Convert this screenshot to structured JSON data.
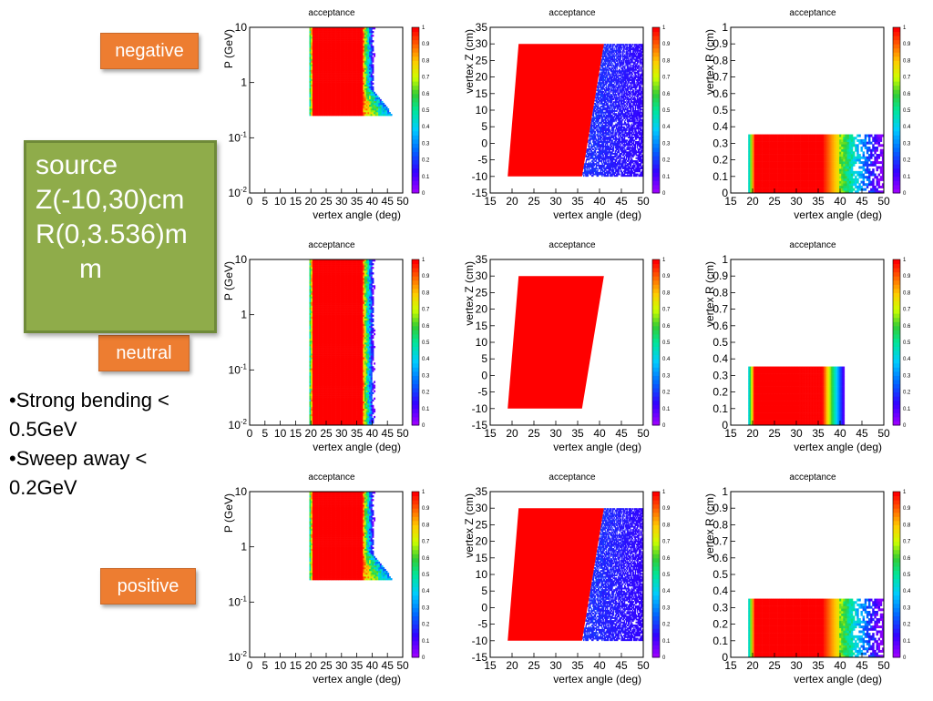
{
  "labels": {
    "negative": "negative",
    "neutral": "neutral",
    "positive": "positive"
  },
  "source_box": {
    "line1": "source",
    "line2": "Z(-10,30)cm",
    "line3": "R(0,3.536)m",
    "line4": "m"
  },
  "notes": {
    "line1": "•Strong bending <",
    "line2": "0.5GeV",
    "line3": "•Sweep away  <",
    "line4": "0.2GeV"
  },
  "colors": {
    "orange": "#ed7d31",
    "green": "#8fac4a",
    "red": "#ff0000",
    "blue": "#3300ff"
  },
  "chart_data": [
    {
      "id": "neg-p",
      "row": "negative",
      "type": "heatmap",
      "title": "acceptance",
      "xlabel": "vertex angle (deg)",
      "ylabel": "P (GeV)",
      "xlim": [
        0,
        50
      ],
      "ylim": [
        0.01,
        10
      ],
      "yscale": "log",
      "x_ticks": [
        "0",
        "5",
        "10",
        "15",
        "20",
        "25",
        "30",
        "35",
        "40",
        "45",
        "50"
      ],
      "y_ticks": [
        "10^-2",
        "10^-1",
        "1",
        "10"
      ],
      "colorbar": [
        0,
        1
      ],
      "colorbar_ticks": [
        "0",
        "0.1",
        "0.2",
        "0.3",
        "0.4",
        "0.5",
        "0.6",
        "0.7",
        "0.8",
        "0.9",
        "1"
      ],
      "region": {
        "theta_min": 19.5,
        "theta_max": 37,
        "p_min_low": 0.25,
        "p_min_at_theta": [
          [
            19.5,
            0.28
          ],
          [
            37,
            0.26
          ],
          [
            50,
            0.3
          ]
        ]
      }
    },
    {
      "id": "neg-z",
      "row": "negative",
      "type": "heatmap",
      "title": "acceptance",
      "xlabel": "vertex angle (deg)",
      "ylabel": "vertex Z (cm)",
      "xlim": [
        15,
        50
      ],
      "ylim": [
        -15,
        35
      ],
      "x_ticks": [
        "15",
        "20",
        "25",
        "30",
        "35",
        "40",
        "45",
        "50"
      ],
      "y_ticks": [
        "-15",
        "-10",
        "-5",
        "0",
        "5",
        "10",
        "15",
        "20",
        "25",
        "30",
        "35"
      ],
      "colorbar": [
        0,
        1
      ],
      "colorbar_ticks": [
        "0",
        "0.1",
        "0.2",
        "0.3",
        "0.4",
        "0.5",
        "0.6",
        "0.7",
        "0.8",
        "0.9",
        "1"
      ],
      "region": {
        "z_min": -10,
        "z_max": 30,
        "theta_low_at_zmin": 19,
        "theta_low_at_zmax": 21.5,
        "theta_high_at_zmin": 36,
        "theta_high_at_zmax": 41
      },
      "low_region_to_theta": 50
    },
    {
      "id": "neg-r",
      "row": "negative",
      "type": "heatmap",
      "title": "acceptance",
      "xlabel": "vertex angle (deg)",
      "ylabel": "vertex R (cm)",
      "xlim": [
        15,
        50
      ],
      "ylim": [
        0,
        1
      ],
      "x_ticks": [
        "15",
        "20",
        "25",
        "30",
        "35",
        "40",
        "45",
        "50"
      ],
      "y_ticks": [
        "0",
        "0.1",
        "0.2",
        "0.3",
        "0.4",
        "0.5",
        "0.6",
        "0.7",
        "0.8",
        "0.9",
        "1"
      ],
      "colorbar": [
        0,
        1
      ],
      "colorbar_ticks": [
        "0",
        "0.1",
        "0.2",
        "0.3",
        "0.4",
        "0.5",
        "0.6",
        "0.7",
        "0.8",
        "0.9",
        "1"
      ],
      "region": {
        "r_max": 0.354,
        "theta_min": 19,
        "theta_max": 36,
        "fade_to": 50
      }
    },
    {
      "id": "neu-p",
      "row": "neutral",
      "type": "heatmap",
      "title": "acceptance",
      "xlabel": "vertex angle (deg)",
      "ylabel": "P (GeV)",
      "xlim": [
        0,
        50
      ],
      "ylim": [
        0.01,
        10
      ],
      "yscale": "log",
      "x_ticks": [
        "0",
        "5",
        "10",
        "15",
        "20",
        "25",
        "30",
        "35",
        "40",
        "45",
        "50"
      ],
      "y_ticks": [
        "10^-2",
        "10^-1",
        "1",
        "10"
      ],
      "colorbar": [
        0,
        1
      ],
      "colorbar_ticks": [
        "0",
        "0.1",
        "0.2",
        "0.3",
        "0.4",
        "0.5",
        "0.6",
        "0.7",
        "0.8",
        "0.9",
        "1"
      ],
      "region": {
        "theta_min": 19.5,
        "theta_max": 37,
        "p_min_low": 0.01
      }
    },
    {
      "id": "neu-z",
      "row": "neutral",
      "type": "heatmap",
      "title": "acceptance",
      "xlabel": "vertex angle (deg)",
      "ylabel": "vertex Z (cm)",
      "xlim": [
        15,
        50
      ],
      "ylim": [
        -15,
        35
      ],
      "x_ticks": [
        "15",
        "20",
        "25",
        "30",
        "35",
        "40",
        "45",
        "50"
      ],
      "y_ticks": [
        "-15",
        "-10",
        "-5",
        "0",
        "5",
        "10",
        "15",
        "20",
        "25",
        "30",
        "35"
      ],
      "colorbar": [
        0,
        1
      ],
      "colorbar_ticks": [
        "0",
        "0.1",
        "0.2",
        "0.3",
        "0.4",
        "0.5",
        "0.6",
        "0.7",
        "0.8",
        "0.9",
        "1"
      ],
      "region": {
        "z_min": -10,
        "z_max": 30,
        "theta_low_at_zmin": 19,
        "theta_low_at_zmax": 21.5,
        "theta_high_at_zmin": 36,
        "theta_high_at_zmax": 41
      },
      "low_region_to_theta": null
    },
    {
      "id": "neu-r",
      "row": "neutral",
      "type": "heatmap",
      "title": "acceptance",
      "xlabel": "vertex angle (deg)",
      "ylabel": "vertex R (cm)",
      "xlim": [
        15,
        50
      ],
      "ylim": [
        0,
        1
      ],
      "x_ticks": [
        "15",
        "20",
        "25",
        "30",
        "35",
        "40",
        "45",
        "50"
      ],
      "y_ticks": [
        "0",
        "0.1",
        "0.2",
        "0.3",
        "0.4",
        "0.5",
        "0.6",
        "0.7",
        "0.8",
        "0.9",
        "1"
      ],
      "colorbar": [
        0,
        1
      ],
      "colorbar_ticks": [
        "0",
        "0.1",
        "0.2",
        "0.3",
        "0.4",
        "0.5",
        "0.6",
        "0.7",
        "0.8",
        "0.9",
        "1"
      ],
      "region": {
        "r_max": 0.354,
        "theta_min": 19,
        "theta_max": 36,
        "fade_to": 41
      }
    },
    {
      "id": "pos-p",
      "row": "positive",
      "type": "heatmap",
      "title": "acceptance",
      "xlabel": "vertex angle (deg)",
      "ylabel": "P (GeV)",
      "xlim": [
        0,
        50
      ],
      "ylim": [
        0.01,
        10
      ],
      "yscale": "log",
      "x_ticks": [
        "0",
        "5",
        "10",
        "15",
        "20",
        "25",
        "30",
        "35",
        "40",
        "45",
        "50"
      ],
      "y_ticks": [
        "10^-2",
        "10^-1",
        "1",
        "10"
      ],
      "colorbar": [
        0,
        1
      ],
      "colorbar_ticks": [
        "0",
        "0.1",
        "0.2",
        "0.3",
        "0.4",
        "0.5",
        "0.6",
        "0.7",
        "0.8",
        "0.9",
        "1"
      ],
      "region": {
        "theta_min": 19.5,
        "theta_max": 37,
        "p_min_low": 0.25
      }
    },
    {
      "id": "pos-z",
      "row": "positive",
      "type": "heatmap",
      "title": "acceptance",
      "xlabel": "vertex angle (deg)",
      "ylabel": "vertex Z (cm)",
      "xlim": [
        15,
        50
      ],
      "ylim": [
        -15,
        35
      ],
      "x_ticks": [
        "15",
        "20",
        "25",
        "30",
        "35",
        "40",
        "45",
        "50"
      ],
      "y_ticks": [
        "-15",
        "-10",
        "-5",
        "0",
        "5",
        "10",
        "15",
        "20",
        "25",
        "30",
        "35"
      ],
      "colorbar": [
        0,
        1
      ],
      "colorbar_ticks": [
        "0",
        "0.1",
        "0.2",
        "0.3",
        "0.4",
        "0.5",
        "0.6",
        "0.7",
        "0.8",
        "0.9",
        "1"
      ],
      "region": {
        "z_min": -10,
        "z_max": 30,
        "theta_low_at_zmin": 19,
        "theta_low_at_zmax": 21.5,
        "theta_high_at_zmin": 36,
        "theta_high_at_zmax": 41
      },
      "low_region_to_theta": 50
    },
    {
      "id": "pos-r",
      "row": "positive",
      "type": "heatmap",
      "title": "acceptance",
      "xlabel": "vertex angle (deg)",
      "ylabel": "vertex R (cm)",
      "xlim": [
        15,
        50
      ],
      "ylim": [
        0,
        1
      ],
      "x_ticks": [
        "15",
        "20",
        "25",
        "30",
        "35",
        "40",
        "45",
        "50"
      ],
      "y_ticks": [
        "0",
        "0.1",
        "0.2",
        "0.3",
        "0.4",
        "0.5",
        "0.6",
        "0.7",
        "0.8",
        "0.9",
        "1"
      ],
      "colorbar": [
        0,
        1
      ],
      "colorbar_ticks": [
        "0",
        "0.1",
        "0.2",
        "0.3",
        "0.4",
        "0.5",
        "0.6",
        "0.7",
        "0.8",
        "0.9",
        "1"
      ],
      "region": {
        "r_max": 0.354,
        "theta_min": 19,
        "theta_max": 36,
        "fade_to": 50
      }
    }
  ]
}
